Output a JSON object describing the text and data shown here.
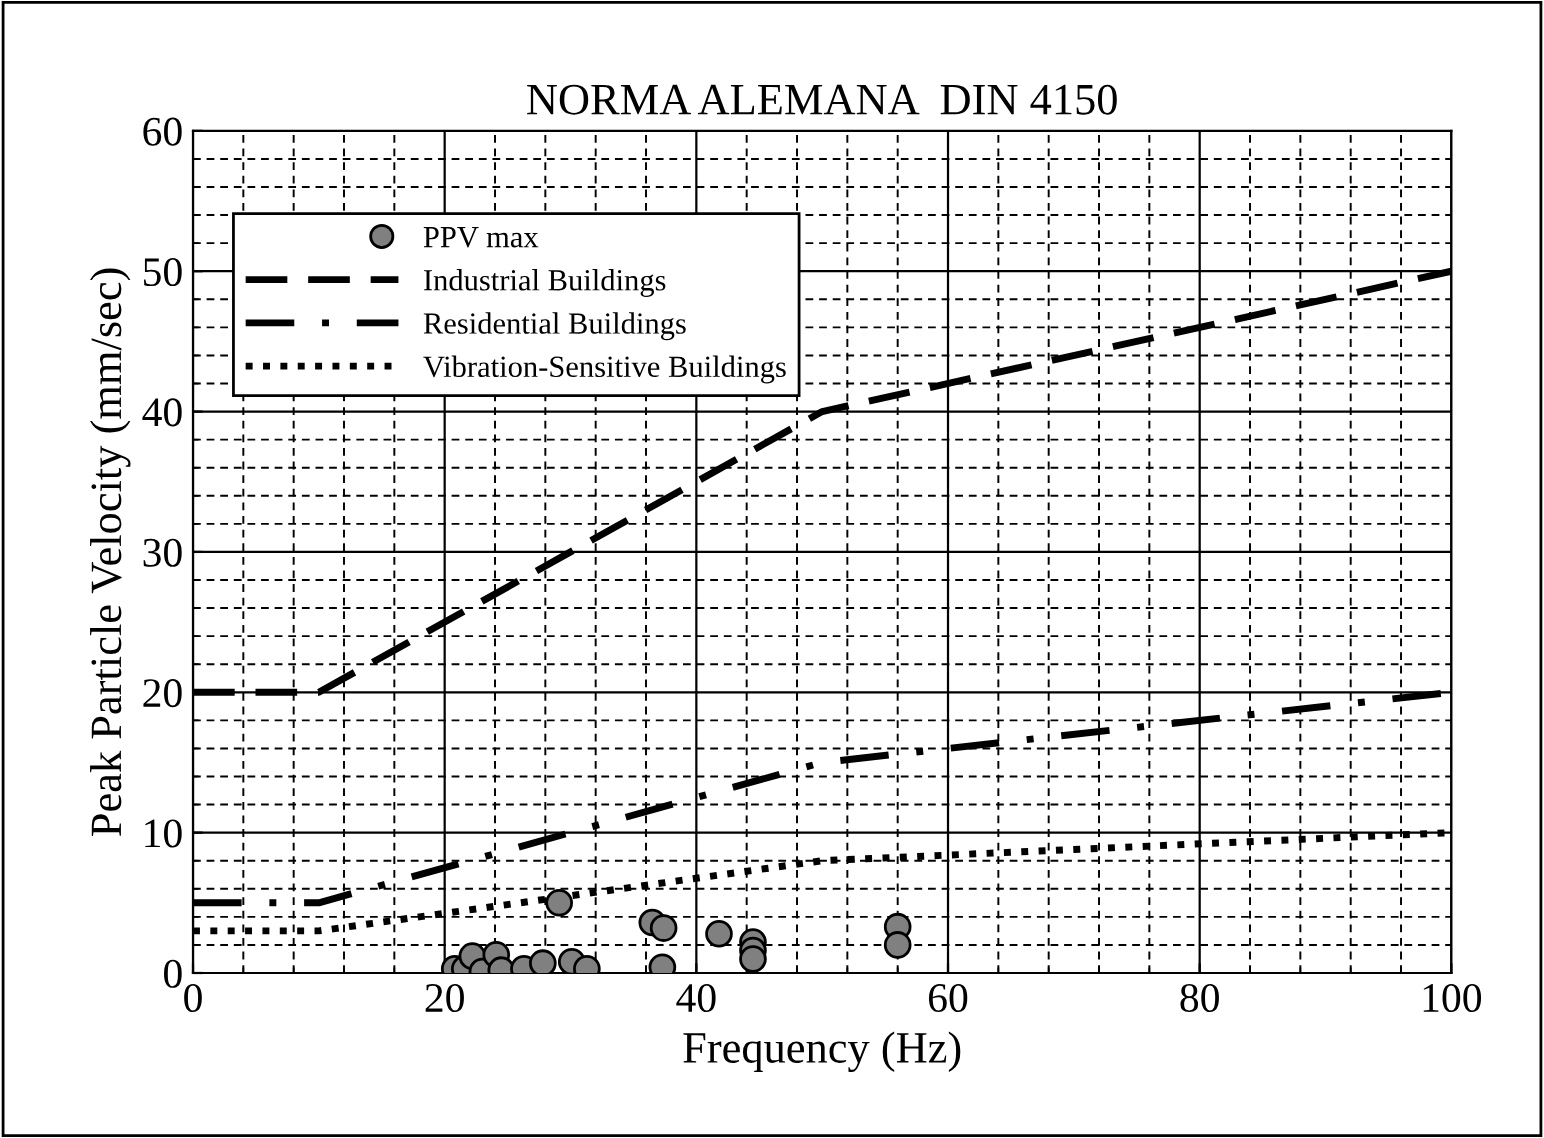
{
  "chart_data": {
    "type": "line",
    "title": "NORMA ALEMANA  DIN 4150",
    "xlabel": "Frequency (Hz)",
    "ylabel": "Peak Particle Velocity (mm/sec)",
    "xlim": [
      0,
      100
    ],
    "xticks": [
      0,
      20,
      40,
      60,
      80,
      100
    ],
    "ylim": [
      0,
      60
    ],
    "yticks": [
      0,
      10,
      20,
      30,
      40,
      50,
      60
    ],
    "grid": true,
    "legend": "top left",
    "series": [
      {
        "name": "PPV max",
        "type": "scatter",
        "marker": "circle",
        "color": "#808080",
        "x": [
          20.8,
          21.6,
          22.2,
          23.0,
          24.1,
          24.5,
          26.3,
          27.8,
          29.1,
          30.1,
          31.3,
          36.5,
          37.4,
          37.3,
          41.8,
          44.5,
          44.5,
          44.5,
          56.0,
          56.0
        ],
        "values": [
          0.3,
          0.3,
          1.2,
          0.1,
          1.3,
          0.2,
          0.3,
          0.7,
          5.0,
          0.8,
          0.3,
          3.6,
          3.2,
          0.4,
          2.8,
          2.2,
          1.6,
          1.0,
          3.3,
          2.0
        ]
      },
      {
        "name": "Industrial Buildings",
        "line_style": "dashed",
        "color": "#000000",
        "x": [
          0,
          10,
          50,
          100
        ],
        "values": [
          20,
          20,
          40,
          50
        ]
      },
      {
        "name": "Residential Buildings",
        "line_style": "dashdot",
        "color": "#000000",
        "x": [
          0,
          10,
          50,
          100
        ],
        "values": [
          5,
          5,
          15,
          20
        ]
      },
      {
        "name": "Vibration-Sensitive Buildings",
        "line_style": "dotted",
        "color": "#000000",
        "x": [
          0,
          10,
          50,
          100
        ],
        "values": [
          3,
          3,
          8,
          10
        ]
      }
    ]
  }
}
